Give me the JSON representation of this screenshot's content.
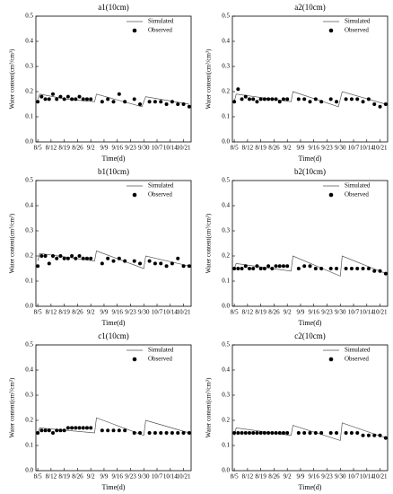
{
  "chart_data": [
    {
      "type": "line",
      "title": "a1(10cm)",
      "xlabel": "Time(d)",
      "ylabel": "Water content(cm³/cm³)",
      "legend": "upper right",
      "xlim": [
        "8/4",
        "10/25"
      ],
      "xticks": [
        "8/5",
        "8/12",
        "8/19",
        "8/26",
        "9/2",
        "9/9",
        "9/16",
        "9/23",
        "9/30",
        "10/7",
        "10/14",
        "10/21"
      ],
      "ylim": [
        0,
        0.5
      ],
      "yticks": [
        {
          "value": 0,
          "label": "0.0"
        },
        0.1,
        0.2,
        0.3,
        0.4,
        0.5
      ],
      "series": [
        {
          "name": "Simulated",
          "mode": "line",
          "color": "#555555",
          "x": [
            "8/5",
            "8/6",
            "8/20",
            "9/4",
            "9/5",
            "9/29",
            "10/1",
            "10/24"
          ],
          "values": [
            0.17,
            0.19,
            0.17,
            0.16,
            0.19,
            0.14,
            0.18,
            0.15
          ]
        },
        {
          "name": "Observed",
          "mode": "markers",
          "color": "#000000",
          "x": [
            "8/5",
            "8/7",
            "8/9",
            "8/11",
            "8/13",
            "8/15",
            "8/17",
            "8/19",
            "8/21",
            "8/23",
            "8/25",
            "8/27",
            "8/29",
            "8/31",
            "9/2",
            "9/8",
            "9/11",
            "9/14",
            "9/17",
            "9/20",
            "9/25",
            "9/28",
            "10/3",
            "10/6",
            "10/9",
            "10/12",
            "10/15",
            "10/18",
            "10/21",
            "10/24"
          ],
          "values": [
            0.16,
            0.18,
            0.17,
            0.17,
            0.19,
            0.17,
            0.18,
            0.17,
            0.18,
            0.17,
            0.17,
            0.18,
            0.17,
            0.17,
            0.17,
            0.16,
            0.17,
            0.16,
            0.19,
            0.16,
            0.17,
            0.15,
            0.16,
            0.16,
            0.16,
            0.15,
            0.16,
            0.15,
            0.15,
            0.14
          ]
        }
      ]
    },
    {
      "type": "line",
      "title": "a2(10cm)",
      "xlabel": "Time(d)",
      "ylabel": "Water content(cm³/cm³)",
      "legend": "upper right",
      "xlim": [
        "8/4",
        "10/25"
      ],
      "xticks": [
        "8/5",
        "8/12",
        "8/19",
        "8/26",
        "9/2",
        "9/9",
        "9/16",
        "9/23",
        "9/30",
        "10/7",
        "10/14",
        "10/21"
      ],
      "ylim": [
        0,
        0.5
      ],
      "yticks": [
        {
          "value": 0,
          "label": "0.0"
        },
        0.1,
        0.2,
        0.3,
        0.4,
        0.5
      ],
      "series": [
        {
          "name": "Simulated",
          "mode": "line",
          "color": "#555555",
          "x": [
            "8/5",
            "8/6",
            "9/4",
            "9/5",
            "9/29",
            "10/1",
            "10/24"
          ],
          "values": [
            0.16,
            0.19,
            0.16,
            0.2,
            0.14,
            0.2,
            0.15
          ]
        },
        {
          "name": "Observed",
          "mode": "markers",
          "color": "#000000",
          "x": [
            "8/5",
            "8/7",
            "8/9",
            "8/11",
            "8/13",
            "8/15",
            "8/17",
            "8/19",
            "8/21",
            "8/23",
            "8/25",
            "8/27",
            "8/29",
            "8/31",
            "9/2",
            "9/8",
            "9/11",
            "9/14",
            "9/17",
            "9/20",
            "9/25",
            "9/28",
            "10/3",
            "10/6",
            "10/9",
            "10/12",
            "10/15",
            "10/18",
            "10/21",
            "10/24"
          ],
          "values": [
            0.16,
            0.21,
            0.17,
            0.18,
            0.17,
            0.17,
            0.16,
            0.17,
            0.17,
            0.17,
            0.17,
            0.17,
            0.16,
            0.17,
            0.17,
            0.17,
            0.17,
            0.16,
            0.17,
            0.16,
            0.17,
            0.16,
            0.17,
            0.17,
            0.17,
            0.16,
            0.17,
            0.15,
            0.14,
            0.15
          ]
        }
      ]
    },
    {
      "type": "line",
      "title": "b1(10cm)",
      "xlabel": "Time(d)",
      "ylabel": "Water content(cm³/cm³)",
      "legend": "upper right",
      "xlim": [
        "8/4",
        "10/25"
      ],
      "xticks": [
        "8/5",
        "8/12",
        "8/19",
        "8/26",
        "9/2",
        "9/9",
        "9/16",
        "9/23",
        "9/30",
        "10/7",
        "10/14",
        "10/21"
      ],
      "ylim": [
        0,
        0.5
      ],
      "yticks": [
        {
          "value": 0,
          "label": "0.0"
        },
        0.1,
        0.2,
        0.3,
        0.4,
        0.5
      ],
      "series": [
        {
          "name": "Simulated",
          "mode": "line",
          "color": "#555555",
          "x": [
            "8/5",
            "8/6",
            "9/4",
            "9/5",
            "9/30",
            "10/1",
            "10/24"
          ],
          "values": [
            0.18,
            0.21,
            0.18,
            0.22,
            0.15,
            0.2,
            0.16
          ]
        },
        {
          "name": "Observed",
          "mode": "markers",
          "color": "#000000",
          "x": [
            "8/5",
            "8/7",
            "8/9",
            "8/11",
            "8/13",
            "8/15",
            "8/17",
            "8/19",
            "8/21",
            "8/23",
            "8/25",
            "8/27",
            "8/29",
            "8/31",
            "9/2",
            "9/8",
            "9/11",
            "9/14",
            "9/17",
            "9/20",
            "9/25",
            "9/28",
            "10/3",
            "10/6",
            "10/9",
            "10/12",
            "10/15",
            "10/18",
            "10/21",
            "10/24"
          ],
          "values": [
            0.16,
            0.2,
            0.2,
            0.17,
            0.2,
            0.19,
            0.2,
            0.19,
            0.19,
            0.2,
            0.19,
            0.2,
            0.19,
            0.19,
            0.19,
            0.17,
            0.19,
            0.18,
            0.19,
            0.18,
            0.18,
            0.17,
            0.18,
            0.17,
            0.17,
            0.16,
            0.17,
            0.19,
            0.16,
            0.16
          ]
        }
      ]
    },
    {
      "type": "line",
      "title": "b2(10cm)",
      "xlabel": "Time(d)",
      "ylabel": "Water content(cm³/cm³)",
      "legend": "upper right",
      "xlim": [
        "8/4",
        "10/25"
      ],
      "xticks": [
        "8/5",
        "8/12",
        "8/19",
        "8/26",
        "9/2",
        "9/9",
        "9/16",
        "9/23",
        "9/30",
        "10/7",
        "10/14",
        "10/21"
      ],
      "ylim": [
        0,
        0.5
      ],
      "yticks": [
        {
          "value": 0,
          "label": "0.0"
        },
        0.1,
        0.2,
        0.3,
        0.4,
        0.5
      ],
      "series": [
        {
          "name": "Simulated",
          "mode": "line",
          "color": "#555555",
          "x": [
            "8/5",
            "8/6",
            "9/4",
            "9/5",
            "9/30",
            "10/1",
            "10/24"
          ],
          "values": [
            0.15,
            0.17,
            0.14,
            0.2,
            0.12,
            0.2,
            0.13
          ]
        },
        {
          "name": "Observed",
          "mode": "markers",
          "color": "#000000",
          "x": [
            "8/5",
            "8/7",
            "8/9",
            "8/11",
            "8/13",
            "8/15",
            "8/17",
            "8/19",
            "8/21",
            "8/23",
            "8/25",
            "8/27",
            "8/29",
            "8/31",
            "9/2",
            "9/8",
            "9/11",
            "9/14",
            "9/17",
            "9/20",
            "9/25",
            "9/28",
            "10/3",
            "10/6",
            "10/9",
            "10/12",
            "10/15",
            "10/18",
            "10/21",
            "10/24"
          ],
          "values": [
            0.15,
            0.15,
            0.15,
            0.16,
            0.15,
            0.15,
            0.16,
            0.15,
            0.15,
            0.16,
            0.15,
            0.16,
            0.16,
            0.16,
            0.16,
            0.15,
            0.16,
            0.16,
            0.15,
            0.15,
            0.15,
            0.15,
            0.15,
            0.15,
            0.15,
            0.15,
            0.15,
            0.14,
            0.14,
            0.13
          ]
        }
      ]
    },
    {
      "type": "line",
      "title": "c1(10cm)",
      "xlabel": "Time(d)",
      "ylabel": "Water content(cm³/cm³)",
      "legend": "upper right",
      "xlim": [
        "8/4",
        "10/25"
      ],
      "xticks": [
        "8/5",
        "8/12",
        "8/19",
        "8/26",
        "9/2",
        "9/9",
        "9/16",
        "9/23",
        "9/30",
        "10/7",
        "10/14",
        "10/21"
      ],
      "ylim": [
        0,
        0.5
      ],
      "yticks": [
        {
          "value": 0,
          "label": "0.0"
        },
        0.1,
        0.2,
        0.3,
        0.4,
        0.5
      ],
      "series": [
        {
          "name": "Simulated",
          "mode": "line",
          "color": "#555555",
          "x": [
            "8/5",
            "8/6",
            "9/4",
            "9/5",
            "9/30",
            "10/1",
            "10/24"
          ],
          "values": [
            0.15,
            0.17,
            0.15,
            0.21,
            0.14,
            0.2,
            0.15
          ]
        },
        {
          "name": "Observed",
          "mode": "markers",
          "color": "#000000",
          "x": [
            "8/5",
            "8/7",
            "8/9",
            "8/11",
            "8/13",
            "8/15",
            "8/17",
            "8/19",
            "8/21",
            "8/23",
            "8/25",
            "8/27",
            "8/29",
            "8/31",
            "9/2",
            "9/8",
            "9/11",
            "9/14",
            "9/17",
            "9/20",
            "9/25",
            "9/28",
            "10/3",
            "10/6",
            "10/9",
            "10/12",
            "10/15",
            "10/18",
            "10/21",
            "10/24"
          ],
          "values": [
            0.15,
            0.16,
            0.16,
            0.16,
            0.15,
            0.16,
            0.16,
            0.16,
            0.17,
            0.17,
            0.17,
            0.17,
            0.17,
            0.17,
            0.17,
            0.16,
            0.16,
            0.16,
            0.16,
            0.16,
            0.15,
            0.15,
            0.15,
            0.15,
            0.15,
            0.15,
            0.15,
            0.15,
            0.15,
            0.15
          ]
        }
      ]
    },
    {
      "type": "line",
      "title": "c2(10cm)",
      "xlabel": "Time(d)",
      "ylabel": "Water content(cm³/cm³)",
      "legend": "upper right",
      "xlim": [
        "8/4",
        "10/25"
      ],
      "xticks": [
        "8/5",
        "8/12",
        "8/19",
        "8/26",
        "9/2",
        "9/9",
        "9/16",
        "9/23",
        "9/30",
        "10/7",
        "10/14",
        "10/21"
      ],
      "ylim": [
        0,
        0.5
      ],
      "yticks": [
        {
          "value": 0,
          "label": "0.0"
        },
        0.1,
        0.2,
        0.3,
        0.4,
        0.5
      ],
      "series": [
        {
          "name": "Simulated",
          "mode": "line",
          "color": "#555555",
          "x": [
            "8/5",
            "8/6",
            "9/4",
            "9/5",
            "9/30",
            "10/1",
            "10/24"
          ],
          "values": [
            0.14,
            0.17,
            0.14,
            0.18,
            0.12,
            0.19,
            0.13
          ]
        },
        {
          "name": "Observed",
          "mode": "markers",
          "color": "#000000",
          "x": [
            "8/5",
            "8/7",
            "8/9",
            "8/11",
            "8/13",
            "8/15",
            "8/17",
            "8/19",
            "8/21",
            "8/23",
            "8/25",
            "8/27",
            "8/29",
            "8/31",
            "9/2",
            "9/8",
            "9/11",
            "9/14",
            "9/17",
            "9/20",
            "9/25",
            "9/28",
            "10/3",
            "10/6",
            "10/9",
            "10/12",
            "10/15",
            "10/18",
            "10/21",
            "10/24"
          ],
          "values": [
            0.15,
            0.15,
            0.15,
            0.15,
            0.15,
            0.15,
            0.15,
            0.15,
            0.15,
            0.15,
            0.15,
            0.15,
            0.15,
            0.15,
            0.15,
            0.15,
            0.15,
            0.15,
            0.15,
            0.15,
            0.15,
            0.15,
            0.15,
            0.15,
            0.15,
            0.14,
            0.14,
            0.14,
            0.14,
            0.13
          ]
        }
      ]
    }
  ]
}
